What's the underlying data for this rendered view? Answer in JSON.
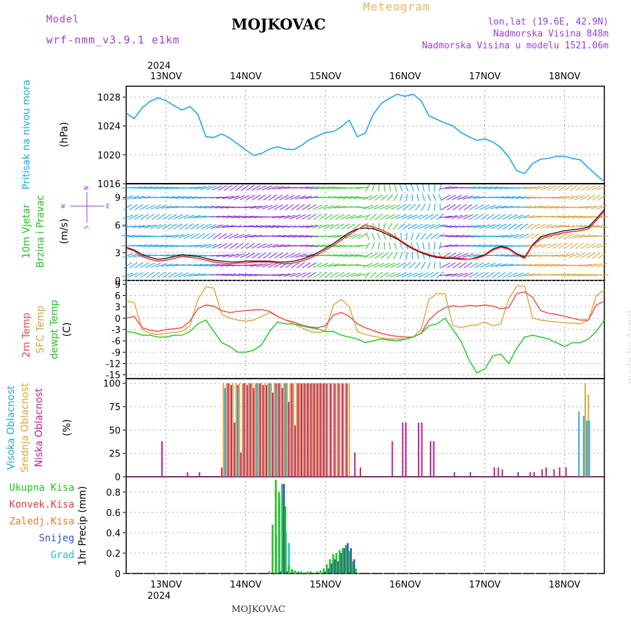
{
  "header": {
    "model_label": "Model",
    "model_name": "wrf-nmm_v3.9.1 e1km",
    "station": "MOJKOVAC",
    "title": "Meteogram",
    "lonlat": "lon,lat (19.6E, 42.9N)",
    "elevation": "Nadmorska Visina 848m",
    "model_elevation": "Nadmorska Visina u modelu 1521.06m",
    "footer_station": "MOJKOVAC",
    "watermark": "made by Angel",
    "year_top": "2024",
    "year_bottom": "2024"
  },
  "colors": {
    "pressure": "#1ea5e6",
    "wind_speed": "#ff3030",
    "wind_black": "#000000",
    "temp2m": "#e84a4a",
    "sfc_temp": "#d9a63a",
    "dewpt": "#1fc31f",
    "cloud_high": "#2ba3d8",
    "cloud_mid": "#d9a63a",
    "cloud_low": "#c0208a",
    "precip_total": "#22c522",
    "precip_conv": "#e83c3c",
    "precip_frozen": "#ee7b2a",
    "precip_snow": "#3a4fd0",
    "precip_grad": "#2ec0b8",
    "model_text": "#9b3fd4",
    "title_text": "#e8b35a"
  },
  "days": [
    "13NOV",
    "14NOV",
    "15NOV",
    "16NOV",
    "17NOV",
    "18NOV"
  ],
  "panels": {
    "pressure": {
      "labels": [
        "Pritisak na nivou mora",
        "(hPa)"
      ],
      "ticks": [
        "1016",
        "1020",
        "1024",
        "1028"
      ]
    },
    "wind": {
      "labels": [
        "10m Vjetar",
        "Brzina i Pravac",
        "(m/s)"
      ],
      "compass": [
        "N",
        "W",
        "E",
        "S"
      ],
      "ticks": [
        "0",
        "3",
        "6",
        "9"
      ]
    },
    "temp": {
      "labels": [
        "2m Temp",
        "SFC Temp",
        "dewpt Temp",
        "(C)"
      ],
      "ticks": [
        "-15",
        "-12",
        "-9",
        "-6",
        "-3",
        "0",
        "3",
        "6",
        "9"
      ]
    },
    "cloud": {
      "labels": [
        "Visoka Oblacnost",
        "Srednja Oblacnost",
        "Niska Oblacnost",
        "(%)"
      ],
      "ticks": [
        "0",
        "25",
        "50",
        "75",
        "100"
      ]
    },
    "precip": {
      "labels": [
        "1hr Precip (mm)"
      ],
      "ticks": [
        "0",
        "0.2",
        "0.4",
        "0.6",
        "0.8"
      ],
      "legend": [
        "Ukupna Kisa",
        "Konvek.Kisa",
        "Zaledj.Kisa",
        "Snijeg",
        "Grad"
      ]
    }
  },
  "chart_data": [
    {
      "type": "line",
      "title": "Pritisak na nivou mora",
      "ylabel": "(hPa)",
      "ylim": [
        1016,
        1029.5
      ],
      "x": [
        12.5,
        12.6,
        12.7,
        12.8,
        12.9,
        13.0,
        13.1,
        13.2,
        13.3,
        13.4,
        13.5,
        13.6,
        13.7,
        13.8,
        13.9,
        14.0,
        14.1,
        14.2,
        14.3,
        14.4,
        14.5,
        14.6,
        14.7,
        14.8,
        14.9,
        15.0,
        15.1,
        15.2,
        15.3,
        15.4,
        15.5,
        15.6,
        15.7,
        15.8,
        15.9,
        16.0,
        16.1,
        16.2,
        16.3,
        16.4,
        16.5,
        16.6,
        16.7,
        16.8,
        16.9,
        17.0,
        17.1,
        17.2,
        17.3,
        17.4,
        17.5,
        17.6,
        17.7,
        17.8,
        17.9,
        18.0,
        18.1,
        18.2,
        18.3,
        18.4,
        18.5
      ],
      "series": [
        {
          "values": [
            1025.8,
            1025,
            1026.5,
            1027.4,
            1027.9,
            1027.5,
            1026.8,
            1026.2,
            1026.7,
            1025.6,
            1022.5,
            1022.4,
            1022.9,
            1022.3,
            1021.5,
            1020.7,
            1019.9,
            1020.2,
            1020.8,
            1021.1,
            1020.8,
            1020.7,
            1021.3,
            1022.1,
            1022.6,
            1023.1,
            1023.2,
            1023.9,
            1024.8,
            1022.5,
            1023.0,
            1025.6,
            1027.1,
            1027.8,
            1028.4,
            1028.1,
            1028.4,
            1027.5,
            1025.4,
            1024.9,
            1024.4,
            1024.0,
            1023.1,
            1022.5,
            1022.0,
            1022.2,
            1021.8,
            1021.0,
            1019.7,
            1017.8,
            1017.4,
            1018.8,
            1019.4,
            1019.5,
            1019.8,
            1019.8,
            1019.5,
            1019.3,
            1018.2,
            1017.2,
            1016.3
          ]
        }
      ]
    },
    {
      "type": "line",
      "title": "10m Vjetar Brzina i Pravac",
      "ylabel": "(m/s)",
      "ylim": [
        0,
        10.5
      ],
      "x": [
        12.5,
        12.6,
        12.7,
        12.8,
        12.9,
        13.0,
        13.1,
        13.2,
        13.3,
        13.4,
        13.5,
        13.6,
        13.7,
        13.8,
        13.9,
        14.0,
        14.1,
        14.2,
        14.3,
        14.4,
        14.5,
        14.6,
        14.7,
        14.8,
        14.9,
        15.0,
        15.1,
        15.2,
        15.3,
        15.4,
        15.5,
        15.6,
        15.7,
        15.8,
        15.9,
        16.0,
        16.1,
        16.2,
        16.3,
        16.4,
        16.5,
        16.6,
        16.7,
        16.8,
        16.9,
        17.0,
        17.1,
        17.2,
        17.3,
        17.4,
        17.5,
        17.6,
        17.7,
        17.8,
        17.9,
        18.0,
        18.1,
        18.2,
        18.3,
        18.4,
        18.5
      ],
      "series": [
        {
          "values": [
            3.5,
            3.2,
            2.6,
            2.3,
            2.1,
            2.2,
            2.4,
            2.6,
            2.5,
            2.4,
            2.2,
            2.0,
            1.9,
            1.8,
            1.9,
            1.9,
            2.0,
            2.0,
            2.0,
            1.9,
            1.8,
            1.9,
            2.1,
            2.4,
            2.8,
            3.3,
            3.8,
            4.4,
            5.0,
            5.5,
            6.0,
            5.8,
            5.5,
            5.1,
            4.6,
            4.0,
            3.5,
            3.1,
            2.8,
            2.6,
            2.5,
            2.5,
            2.4,
            2.3,
            2.4,
            2.7,
            3.3,
            3.6,
            3.4,
            2.8,
            2.4,
            3.8,
            4.5,
            4.8,
            5.0,
            5.2,
            5.3,
            5.4,
            5.6,
            6.5,
            7.5
          ]
        },
        {
          "values": [
            3.6,
            3.3,
            2.8,
            2.5,
            2.3,
            2.4,
            2.6,
            2.8,
            2.7,
            2.6,
            2.4,
            2.2,
            2.1,
            2.0,
            2.0,
            2.1,
            2.1,
            2.1,
            2.1,
            2.0,
            2.0,
            2.1,
            2.3,
            2.6,
            3.0,
            3.5,
            4.0,
            4.6,
            5.2,
            5.6,
            5.7,
            5.6,
            5.3,
            4.9,
            4.5,
            3.9,
            3.4,
            3.0,
            2.7,
            2.5,
            2.4,
            2.4,
            2.3,
            2.3,
            2.5,
            2.8,
            3.4,
            3.7,
            3.5,
            2.9,
            2.5,
            3.9,
            4.7,
            5.0,
            5.2,
            5.4,
            5.5,
            5.6,
            5.8,
            6.7,
            7.7
          ]
        }
      ]
    },
    {
      "type": "line",
      "title": "2m Temp / SFC Temp / dewpt Temp",
      "ylabel": "(C)",
      "ylim": [
        -16,
        10
      ],
      "x": [
        12.5,
        12.6,
        12.7,
        12.8,
        12.9,
        13.0,
        13.1,
        13.2,
        13.3,
        13.4,
        13.5,
        13.6,
        13.7,
        13.8,
        13.9,
        14.0,
        14.1,
        14.2,
        14.3,
        14.4,
        14.5,
        14.6,
        14.7,
        14.8,
        14.9,
        15.0,
        15.1,
        15.2,
        15.3,
        15.4,
        15.5,
        15.6,
        15.7,
        15.8,
        15.9,
        16.0,
        16.1,
        16.2,
        16.3,
        16.4,
        16.5,
        16.6,
        16.7,
        16.8,
        16.9,
        17.0,
        17.1,
        17.2,
        17.3,
        17.4,
        17.5,
        17.6,
        17.7,
        17.8,
        17.9,
        18.0,
        18.1,
        18.2,
        18.3,
        18.4,
        18.5
      ],
      "series": [
        {
          "name": "2m Temp",
          "values": [
            0,
            0.5,
            -2.5,
            -3.2,
            -3.5,
            -3.0,
            -2.8,
            -2.5,
            -0.8,
            2.5,
            3.5,
            3.2,
            2.0,
            1.5,
            1.8,
            2.0,
            2.2,
            2.3,
            1.8,
            0.5,
            -0.5,
            -1.0,
            -1.8,
            -2.3,
            -2.5,
            -2.0,
            0.8,
            1.5,
            0.5,
            -1.5,
            -2.5,
            -3.3,
            -4.0,
            -4.5,
            -4.8,
            -5.0,
            -5.0,
            -4.0,
            -0.5,
            1.5,
            2.8,
            3.3,
            3.0,
            3.4,
            3.2,
            3.5,
            3.2,
            2.5,
            2.8,
            6.5,
            7.0,
            5.5,
            2.0,
            1.3,
            1.0,
            0.5,
            0.0,
            -0.5,
            -0.5,
            3.5,
            4.5
          ]
        },
        {
          "name": "SFC Temp",
          "values": [
            4.5,
            4.2,
            -3.0,
            -4.0,
            -4.3,
            -4.0,
            -3.8,
            -3.5,
            -2.0,
            5.0,
            8.3,
            8.0,
            1.0,
            0.0,
            -0.5,
            -0.8,
            -0.5,
            0.5,
            1.5,
            0.5,
            -0.5,
            -1.5,
            -2.5,
            -3.5,
            -3.8,
            -3.5,
            3.5,
            5.0,
            3.0,
            -3.5,
            -4.3,
            -4.8,
            -5.2,
            -5.5,
            -5.5,
            -5.5,
            -5.0,
            -3.0,
            5.0,
            6.5,
            6.5,
            -2.0,
            -2.5,
            -2.0,
            -1.8,
            -1.0,
            -2.0,
            -1.5,
            5.0,
            8.5,
            8.5,
            0.0,
            -0.5,
            -0.8,
            -1.0,
            -1.2,
            -1.3,
            -1.5,
            -0.5,
            6.0,
            7.5
          ]
        },
        {
          "name": "dewpt Temp",
          "values": [
            -3.5,
            -3.8,
            -4.5,
            -4.5,
            -5.0,
            -5.0,
            -4.5,
            -4.5,
            -3.5,
            -1.5,
            -0.5,
            -3.5,
            -6.5,
            -7.5,
            -9.0,
            -9.0,
            -8.5,
            -7.0,
            -3.5,
            -1.0,
            -1.5,
            -1.5,
            -2.0,
            -2.5,
            -2.8,
            -3.5,
            -3.5,
            -4.5,
            -5.0,
            -5.5,
            -6.5,
            -6.0,
            -5.5,
            -5.8,
            -6.0,
            -5.5,
            -5.0,
            -4.0,
            -2.0,
            -1.5,
            0.0,
            -3.0,
            -6.0,
            -11.0,
            -14.5,
            -13.5,
            -10.0,
            -9.5,
            -12.0,
            -8.0,
            -5.0,
            -4.5,
            -5.0,
            -5.5,
            -6.5,
            -7.5,
            -6.5,
            -6.5,
            -5.5,
            -3.5,
            -0.5
          ]
        }
      ]
    },
    {
      "type": "bar",
      "title": "Visoka / Srednja / Niska Oblacnost",
      "ylabel": "(%)",
      "ylim": [
        0,
        105
      ],
      "x": [
        12.93,
        13.25,
        13.4,
        13.68,
        13.72,
        13.76,
        13.8,
        13.84,
        13.88,
        13.92,
        13.96,
        14.0,
        14.04,
        14.08,
        14.12,
        14.16,
        14.2,
        14.24,
        14.28,
        14.32,
        14.36,
        14.4,
        14.44,
        14.48,
        14.52,
        14.56,
        14.6,
        14.64,
        14.68,
        14.72,
        14.76,
        14.8,
        14.84,
        14.88,
        14.92,
        14.96,
        15.0,
        15.05,
        15.1,
        15.15,
        15.2,
        15.25,
        15.3,
        15.35,
        15.42,
        15.46,
        15.82,
        15.95,
        15.99,
        16.15,
        16.19,
        16.3,
        16.34,
        16.6,
        16.8,
        17.1,
        17.15,
        17.2,
        17.4,
        17.55,
        17.6,
        17.7,
        17.75,
        17.85,
        17.92,
        18.0,
        18.2,
        18.26,
        18.3,
        18.33
      ],
      "series": [
        {
          "name": "Visoka Oblacnost",
          "values": [
            0,
            0,
            0,
            0,
            0,
            95,
            0,
            0,
            0,
            95,
            0,
            0,
            0,
            0,
            0,
            100,
            0,
            0,
            0,
            100,
            0,
            95,
            0,
            0,
            100,
            0,
            0,
            0,
            0,
            0,
            0,
            0,
            0,
            0,
            0,
            0,
            0,
            0,
            0,
            0,
            0,
            0,
            0,
            0,
            0,
            0,
            0,
            0,
            0,
            0,
            0,
            0,
            0,
            0,
            0,
            0,
            0,
            0,
            0,
            0,
            0,
            0,
            0,
            0,
            0,
            0,
            70,
            65,
            60,
            60
          ]
        },
        {
          "name": "Srednja Oblacnost",
          "values": [
            0,
            0,
            0,
            0,
            100,
            100,
            100,
            100,
            100,
            100,
            100,
            100,
            100,
            100,
            100,
            100,
            100,
            100,
            100,
            100,
            100,
            100,
            100,
            100,
            100,
            100,
            100,
            100,
            100,
            100,
            100,
            100,
            100,
            100,
            100,
            100,
            100,
            100,
            100,
            100,
            100,
            100,
            100,
            0,
            0,
            0,
            0,
            0,
            0,
            0,
            0,
            0,
            0,
            0,
            0,
            0,
            0,
            0,
            0,
            0,
            0,
            0,
            0,
            0,
            0,
            0,
            0,
            100,
            88,
            0
          ]
        },
        {
          "name": "Niska Oblacnost",
          "values": [
            38,
            5,
            5,
            10,
            0,
            100,
            98,
            58,
            98,
            26,
            100,
            98,
            100,
            95,
            100,
            100,
            98,
            98,
            100,
            90,
            100,
            100,
            95,
            100,
            80,
            100,
            55,
            100,
            100,
            100,
            100,
            100,
            100,
            100,
            100,
            100,
            100,
            100,
            100,
            100,
            100,
            100,
            0,
            26,
            10,
            0,
            38,
            58,
            58,
            58,
            58,
            38,
            38,
            5,
            5,
            10,
            10,
            8,
            5,
            5,
            5,
            8,
            10,
            8,
            10,
            10,
            0,
            0,
            0,
            0
          ]
        }
      ]
    },
    {
      "type": "bar",
      "title": "1hr Precip",
      "ylabel": "1hr Precip (mm)",
      "ylim": [
        0,
        0.95
      ],
      "x": [
        14.32,
        14.36,
        14.4,
        14.44,
        14.48,
        14.52,
        14.56,
        14.6,
        14.64,
        14.68,
        14.72,
        14.76,
        14.8,
        14.84,
        14.88,
        14.92,
        14.96,
        15.0,
        15.04,
        15.08,
        15.12,
        15.16,
        15.2,
        15.24,
        15.28,
        15.32,
        15.36,
        15.4,
        16.08,
        17.35
      ],
      "series": [
        {
          "name": "Ukupna Kisa",
          "values": [
            0.02,
            0.48,
            0.92,
            0.8,
            0.88,
            0.66,
            0.08,
            0.04,
            0.03,
            0.02,
            0.02,
            0.01,
            0.02,
            0.02,
            0.01,
            0.02,
            0.03,
            0.05,
            0.09,
            0.14,
            0.19,
            0.2,
            0.23,
            0.25,
            0.28,
            0.22,
            0.12,
            0.05,
            0.01,
            0.01
          ]
        },
        {
          "name": "Snijeg",
          "values": [
            0,
            0,
            0,
            0.02,
            0.88,
            0.02,
            0,
            0,
            0,
            0,
            0,
            0,
            0,
            0,
            0,
            0,
            0,
            0.02,
            0.05,
            0.1,
            0.14,
            0.12,
            0.2,
            0.25,
            0.3,
            0.25,
            0.14,
            0,
            0,
            0
          ]
        },
        {
          "name": "Grad",
          "values": [
            0,
            0.38,
            0.75,
            0.6,
            0.4,
            0.3,
            0.04,
            0.02,
            0.01,
            0,
            0,
            0,
            0,
            0,
            0,
            0,
            0,
            0,
            0,
            0.02,
            0.01,
            0.02,
            0.03,
            0.01,
            0.02,
            0.03,
            0.04,
            0,
            0,
            0
          ]
        }
      ]
    }
  ]
}
